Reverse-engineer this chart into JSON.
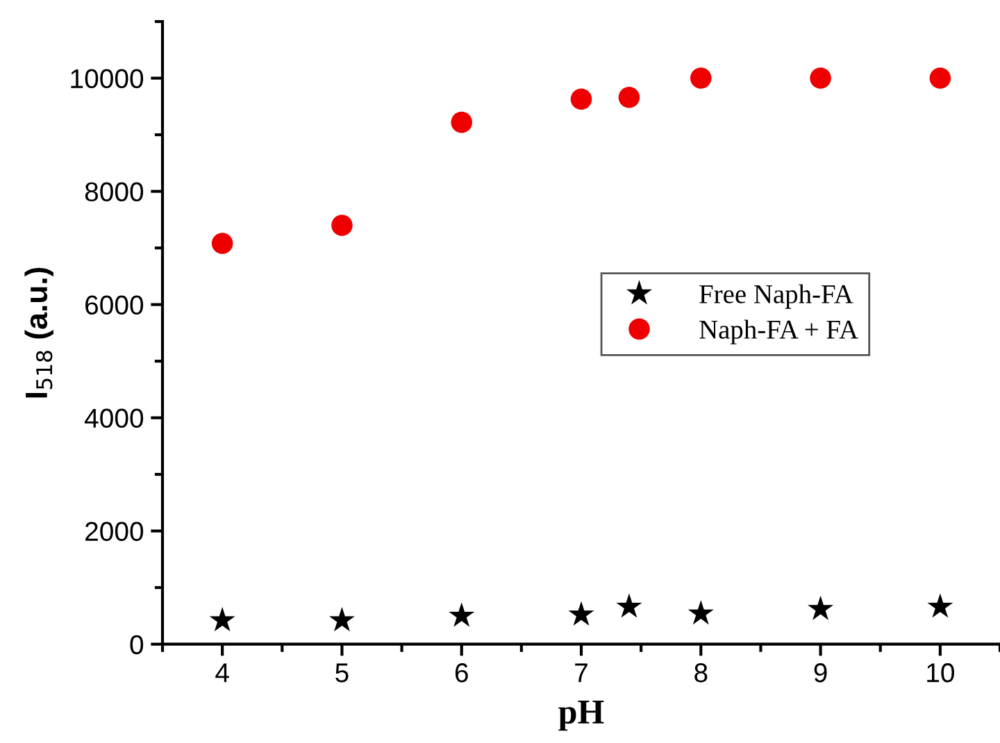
{
  "chart_data": {
    "type": "scatter",
    "xlabel": "pH",
    "ylabel": "I$_{518}$ (a.u.)",
    "x": [
      4,
      5,
      6,
      7,
      7.4,
      8,
      9,
      10
    ],
    "series": [
      {
        "name": "Free Naph-FA",
        "color": "#000000",
        "marker": "star",
        "values": [
          420,
          420,
          500,
          520,
          660,
          540,
          620,
          660
        ]
      },
      {
        "name": "Naph-FA + FA",
        "color": "#ee0000",
        "marker": "circle",
        "values": [
          7080,
          7400,
          9220,
          9630,
          9660,
          10000,
          10000,
          10000
        ]
      }
    ],
    "xlim": [
      3.5,
      10.5
    ],
    "xticks": [
      4,
      5,
      6,
      7,
      8,
      9,
      10
    ],
    "ylim": [
      0,
      11000
    ],
    "yticks": [
      0,
      2000,
      4000,
      6000,
      8000,
      10000
    ],
    "grid": false,
    "legend": "right"
  }
}
